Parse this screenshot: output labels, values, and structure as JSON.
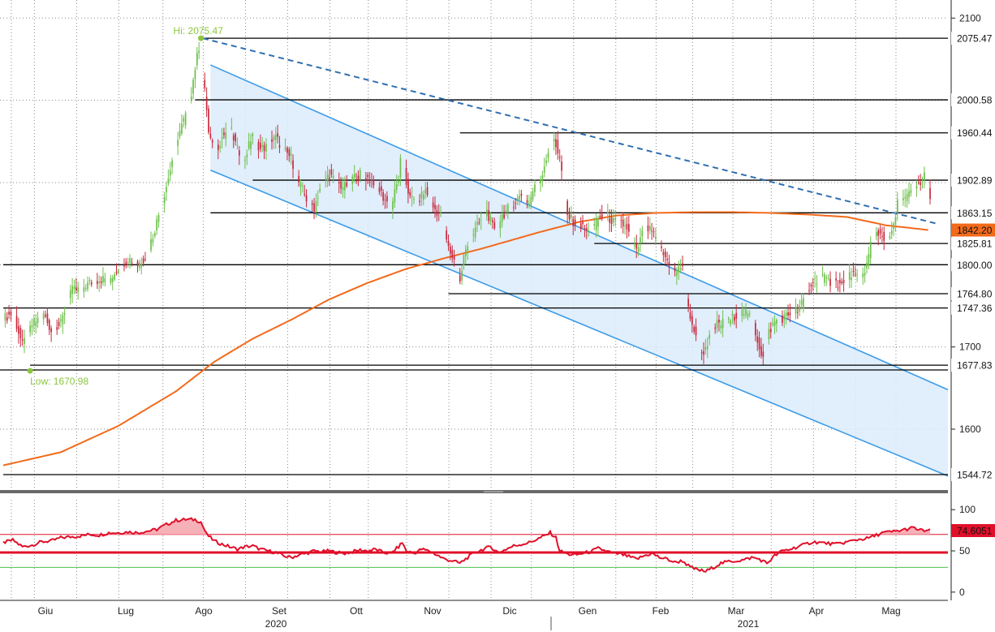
{
  "colors": {
    "background": "#ffffff",
    "grid": "#8a8a8a",
    "bull": "#6cc04a",
    "bear": "#c8283c",
    "ma": "#f26a1b",
    "channel_line": "#3b9be8",
    "channel_fill": "#dcebfb",
    "trendline": "#2f6fb0",
    "level_line": "#000000",
    "rsi_line": "#e0102a",
    "rsi_fill": "#f6b0b8",
    "rsi_upper": "#e0102a",
    "rsi_lower": "#4cc04c",
    "annot": "#8cc63f"
  },
  "chart_data": [
    {
      "type": "candlestick",
      "title": "",
      "ylim": [
        1525,
        2122
      ],
      "y_ticks": [
        "2100",
        "1700",
        "1600"
      ],
      "x_month_labels": [
        "Giu",
        "Lug",
        "Ago",
        "Set",
        "Ott",
        "Nov",
        "Dic",
        "Gen",
        "Feb",
        "Mar",
        "Apr",
        "Mag"
      ],
      "x_year_labels": [
        "2020",
        "2021"
      ],
      "levels": [
        {
          "label": "2075.47",
          "value": 2075.47
        },
        {
          "label": "2000.58",
          "value": 2000.58
        },
        {
          "label": "1960.44",
          "value": 1960.44
        },
        {
          "label": "1902.89",
          "value": 1902.89
        },
        {
          "label": "1863.15",
          "value": 1863.15
        },
        {
          "label": "1825.81",
          "value": 1825.81
        },
        {
          "label": "1800.00",
          "value": 1800.0
        },
        {
          "label": "1764.80",
          "value": 1764.8
        },
        {
          "label": "1747.36",
          "value": 1747.36
        },
        {
          "label": "1677.83",
          "value": 1677.83
        },
        {
          "label": "1544.72",
          "value": 1544.72
        }
      ],
      "ma_tag": {
        "label": "1842.20",
        "value": 1842.2
      },
      "annotations": {
        "high": "Hi: 2075.47",
        "low": "Low: 1670.98"
      },
      "high_value": 2075.47,
      "low_value": 1670.98,
      "series": [
        {
          "kind": "candles",
          "x_start": "2020-05-22",
          "x_end": "2021-05-21",
          "closes": [
            [
              0,
              1734
            ],
            [
              5,
              1742
            ],
            [
              10,
              1702
            ],
            [
              15,
              1727
            ],
            [
              21,
              1740
            ],
            [
              25,
              1720
            ],
            [
              30,
              1728
            ],
            [
              35,
              1768
            ],
            [
              40,
              1770
            ],
            [
              45,
              1778
            ],
            [
              50,
              1782
            ],
            [
              56,
              1784
            ],
            [
              60,
              1797
            ],
            [
              65,
              1808
            ],
            [
              70,
              1800
            ],
            [
              74,
              1810
            ],
            [
              78,
              1835
            ],
            [
              82,
              1870
            ],
            [
              86,
              1905
            ],
            [
              90,
              1950
            ],
            [
              94,
              1975
            ],
            [
              97,
              1995
            ],
            [
              100,
              2040
            ],
            [
              102,
              2065
            ],
            [
              104,
              2030
            ],
            [
              106,
              1990
            ],
            [
              107,
              1960
            ],
            [
              110,
              1935
            ],
            [
              114,
              1955
            ],
            [
              118,
              1968
            ],
            [
              122,
              1940
            ],
            [
              126,
              1930
            ],
            [
              130,
              1960
            ],
            [
              134,
              1940
            ],
            [
              138,
              1945
            ],
            [
              142,
              1955
            ],
            [
              146,
              1940
            ],
            [
              150,
              1930
            ],
            [
              154,
              1900
            ],
            [
              158,
              1880
            ],
            [
              162,
              1870
            ],
            [
              166,
              1900
            ],
            [
              170,
              1910
            ],
            [
              174,
              1898
            ],
            [
              178,
              1895
            ],
            [
              182,
              1905
            ],
            [
              186,
              1910
            ],
            [
              190,
              1905
            ],
            [
              194,
              1900
            ],
            [
              198,
              1882
            ],
            [
              202,
              1870
            ],
            [
              206,
              1905
            ],
            [
              208,
              1945
            ],
            [
              210,
              1900
            ],
            [
              212,
              1880
            ],
            [
              216,
              1878
            ],
            [
              220,
              1890
            ],
            [
              224,
              1870
            ],
            [
              228,
              1860
            ],
            [
              232,
              1820
            ],
            [
              236,
              1800
            ],
            [
              238,
              1778
            ],
            [
              240,
              1810
            ],
            [
              244,
              1835
            ],
            [
              248,
              1850
            ],
            [
              252,
              1865
            ],
            [
              256,
              1840
            ],
            [
              260,
              1860
            ],
            [
              264,
              1870
            ],
            [
              268,
              1880
            ],
            [
              270,
              1885
            ],
            [
              274,
              1875
            ],
            [
              276,
              1890
            ],
            [
              280,
              1905
            ],
            [
              284,
              1938
            ],
            [
              287,
              1955
            ],
            [
              290,
              1928
            ],
            [
              292,
              1900
            ],
            [
              294,
              1860
            ],
            [
              298,
              1850
            ],
            [
              302,
              1845
            ],
            [
              306,
              1838
            ],
            [
              310,
              1855
            ],
            [
              314,
              1860
            ],
            [
              318,
              1852
            ],
            [
              322,
              1850
            ],
            [
              325,
              1845
            ],
            [
              327,
              1830
            ],
            [
              330,
              1815
            ],
            [
              334,
              1845
            ],
            [
              338,
              1840
            ],
            [
              342,
              1820
            ],
            [
              346,
              1805
            ],
            [
              350,
              1790
            ],
            [
              354,
              1800
            ],
            [
              356,
              1755
            ],
            [
              360,
              1720
            ],
            [
              362,
              1700
            ],
            [
              364,
              1690
            ],
            [
              368,
              1710
            ],
            [
              372,
              1728
            ],
            [
              378,
              1730
            ],
            [
              382,
              1740
            ],
            [
              386,
              1742
            ],
            [
              390,
              1735
            ],
            [
              394,
              1700
            ],
            [
              396,
              1686
            ],
            [
              398,
              1715
            ],
            [
              402,
              1730
            ],
            [
              406,
              1735
            ],
            [
              410,
              1740
            ],
            [
              414,
              1745
            ],
            [
              418,
              1760
            ],
            [
              422,
              1780
            ],
            [
              426,
              1785
            ],
            [
              430,
              1780
            ],
            [
              434,
              1778
            ],
            [
              438,
              1775
            ],
            [
              442,
              1790
            ],
            [
              446,
              1780
            ],
            [
              450,
              1800
            ],
            [
              452,
              1825
            ],
            [
              455,
              1840
            ],
            [
              458,
              1835
            ],
            [
              461,
              1830
            ],
            [
              464,
              1845
            ],
            [
              466,
              1875
            ],
            [
              470,
              1880
            ],
            [
              474,
              1890
            ],
            [
              478,
              1900
            ],
            [
              480,
              1910
            ],
            [
              483,
              1880
            ]
          ]
        },
        {
          "kind": "moving-average",
          "name": "",
          "points": [
            [
              0,
              1556
            ],
            [
              30,
              1572
            ],
            [
              60,
              1604
            ],
            [
              90,
              1646
            ],
            [
              110,
              1682
            ],
            [
              130,
              1710
            ],
            [
              150,
              1733
            ],
            [
              170,
              1758
            ],
            [
              190,
              1778
            ],
            [
              210,
              1795
            ],
            [
              230,
              1808
            ],
            [
              250,
              1820
            ],
            [
              265,
              1830
            ],
            [
              280,
              1840
            ],
            [
              300,
              1852
            ],
            [
              320,
              1860
            ],
            [
              340,
              1863
            ],
            [
              360,
              1864
            ],
            [
              380,
              1864
            ],
            [
              400,
              1863
            ],
            [
              420,
              1861
            ],
            [
              440,
              1858
            ],
            [
              460,
              1848
            ],
            [
              483,
              1842
            ]
          ]
        },
        {
          "kind": "trendline-dashed",
          "points": [
            [
              104,
              2075.47
            ],
            [
              483,
              1850
            ]
          ]
        },
        {
          "kind": "channel",
          "upper": [
            [
              108,
              2043
            ],
            [
              483,
              1648
            ]
          ],
          "lower": [
            [
              108,
              1915
            ],
            [
              483,
              1543
            ]
          ]
        }
      ]
    },
    {
      "type": "line",
      "title": "",
      "ylim": [
        -10,
        112
      ],
      "y_ticks": [
        "100",
        "50",
        "0"
      ],
      "upper_level": 70,
      "lower_level": 30,
      "mid_level": 48,
      "value_tag": {
        "label": "74.6051",
        "value": 74.6051
      },
      "rsi_points": [
        [
          0,
          60
        ],
        [
          5,
          63
        ],
        [
          10,
          55
        ],
        [
          15,
          57
        ],
        [
          20,
          61
        ],
        [
          25,
          62
        ],
        [
          30,
          66
        ],
        [
          35,
          67
        ],
        [
          40,
          68
        ],
        [
          45,
          70
        ],
        [
          50,
          69
        ],
        [
          55,
          72
        ],
        [
          60,
          72
        ],
        [
          65,
          73
        ],
        [
          70,
          72
        ],
        [
          75,
          74
        ],
        [
          80,
          76
        ],
        [
          85,
          82
        ],
        [
          90,
          87
        ],
        [
          95,
          88
        ],
        [
          100,
          88
        ],
        [
          103,
          85
        ],
        [
          106,
          70
        ],
        [
          110,
          62
        ],
        [
          114,
          58
        ],
        [
          118,
          55
        ],
        [
          122,
          52
        ],
        [
          126,
          55
        ],
        [
          130,
          56
        ],
        [
          134,
          52
        ],
        [
          138,
          50
        ],
        [
          142,
          48
        ],
        [
          146,
          44
        ],
        [
          150,
          42
        ],
        [
          154,
          45
        ],
        [
          158,
          47
        ],
        [
          162,
          50
        ],
        [
          166,
          49
        ],
        [
          170,
          50
        ],
        [
          174,
          48
        ],
        [
          178,
          47
        ],
        [
          182,
          49
        ],
        [
          186,
          51
        ],
        [
          190,
          50
        ],
        [
          194,
          52
        ],
        [
          198,
          48
        ],
        [
          202,
          47
        ],
        [
          206,
          55
        ],
        [
          208,
          60
        ],
        [
          210,
          50
        ],
        [
          214,
          47
        ],
        [
          218,
          52
        ],
        [
          222,
          50
        ],
        [
          226,
          45
        ],
        [
          230,
          40
        ],
        [
          234,
          38
        ],
        [
          238,
          35
        ],
        [
          242,
          42
        ],
        [
          246,
          48
        ],
        [
          250,
          52
        ],
        [
          254,
          55
        ],
        [
          258,
          48
        ],
        [
          262,
          52
        ],
        [
          266,
          56
        ],
        [
          270,
          58
        ],
        [
          274,
          60
        ],
        [
          278,
          64
        ],
        [
          282,
          68
        ],
        [
          285,
          72
        ],
        [
          288,
          66
        ],
        [
          290,
          50
        ],
        [
          294,
          46
        ],
        [
          298,
          45
        ],
        [
          302,
          47
        ],
        [
          306,
          49
        ],
        [
          310,
          53
        ],
        [
          314,
          50
        ],
        [
          318,
          47
        ],
        [
          322,
          46
        ],
        [
          326,
          43
        ],
        [
          330,
          40
        ],
        [
          334,
          44
        ],
        [
          338,
          47
        ],
        [
          342,
          42
        ],
        [
          346,
          40
        ],
        [
          350,
          36
        ],
        [
          354,
          38
        ],
        [
          358,
          30
        ],
        [
          362,
          27
        ],
        [
          366,
          25
        ],
        [
          370,
          30
        ],
        [
          374,
          35
        ],
        [
          378,
          37
        ],
        [
          382,
          38
        ],
        [
          386,
          39
        ],
        [
          390,
          42
        ],
        [
          394,
          40
        ],
        [
          398,
          35
        ],
        [
          402,
          44
        ],
        [
          406,
          50
        ],
        [
          410,
          52
        ],
        [
          414,
          55
        ],
        [
          418,
          58
        ],
        [
          422,
          61
        ],
        [
          426,
          60
        ],
        [
          430,
          59
        ],
        [
          434,
          58
        ],
        [
          438,
          60
        ],
        [
          442,
          62
        ],
        [
          446,
          64
        ],
        [
          450,
          65
        ],
        [
          454,
          68
        ],
        [
          458,
          72
        ],
        [
          462,
          73
        ],
        [
          466,
          74
        ],
        [
          470,
          76
        ],
        [
          474,
          78
        ],
        [
          478,
          75
        ],
        [
          483,
          74.6
        ]
      ]
    }
  ]
}
